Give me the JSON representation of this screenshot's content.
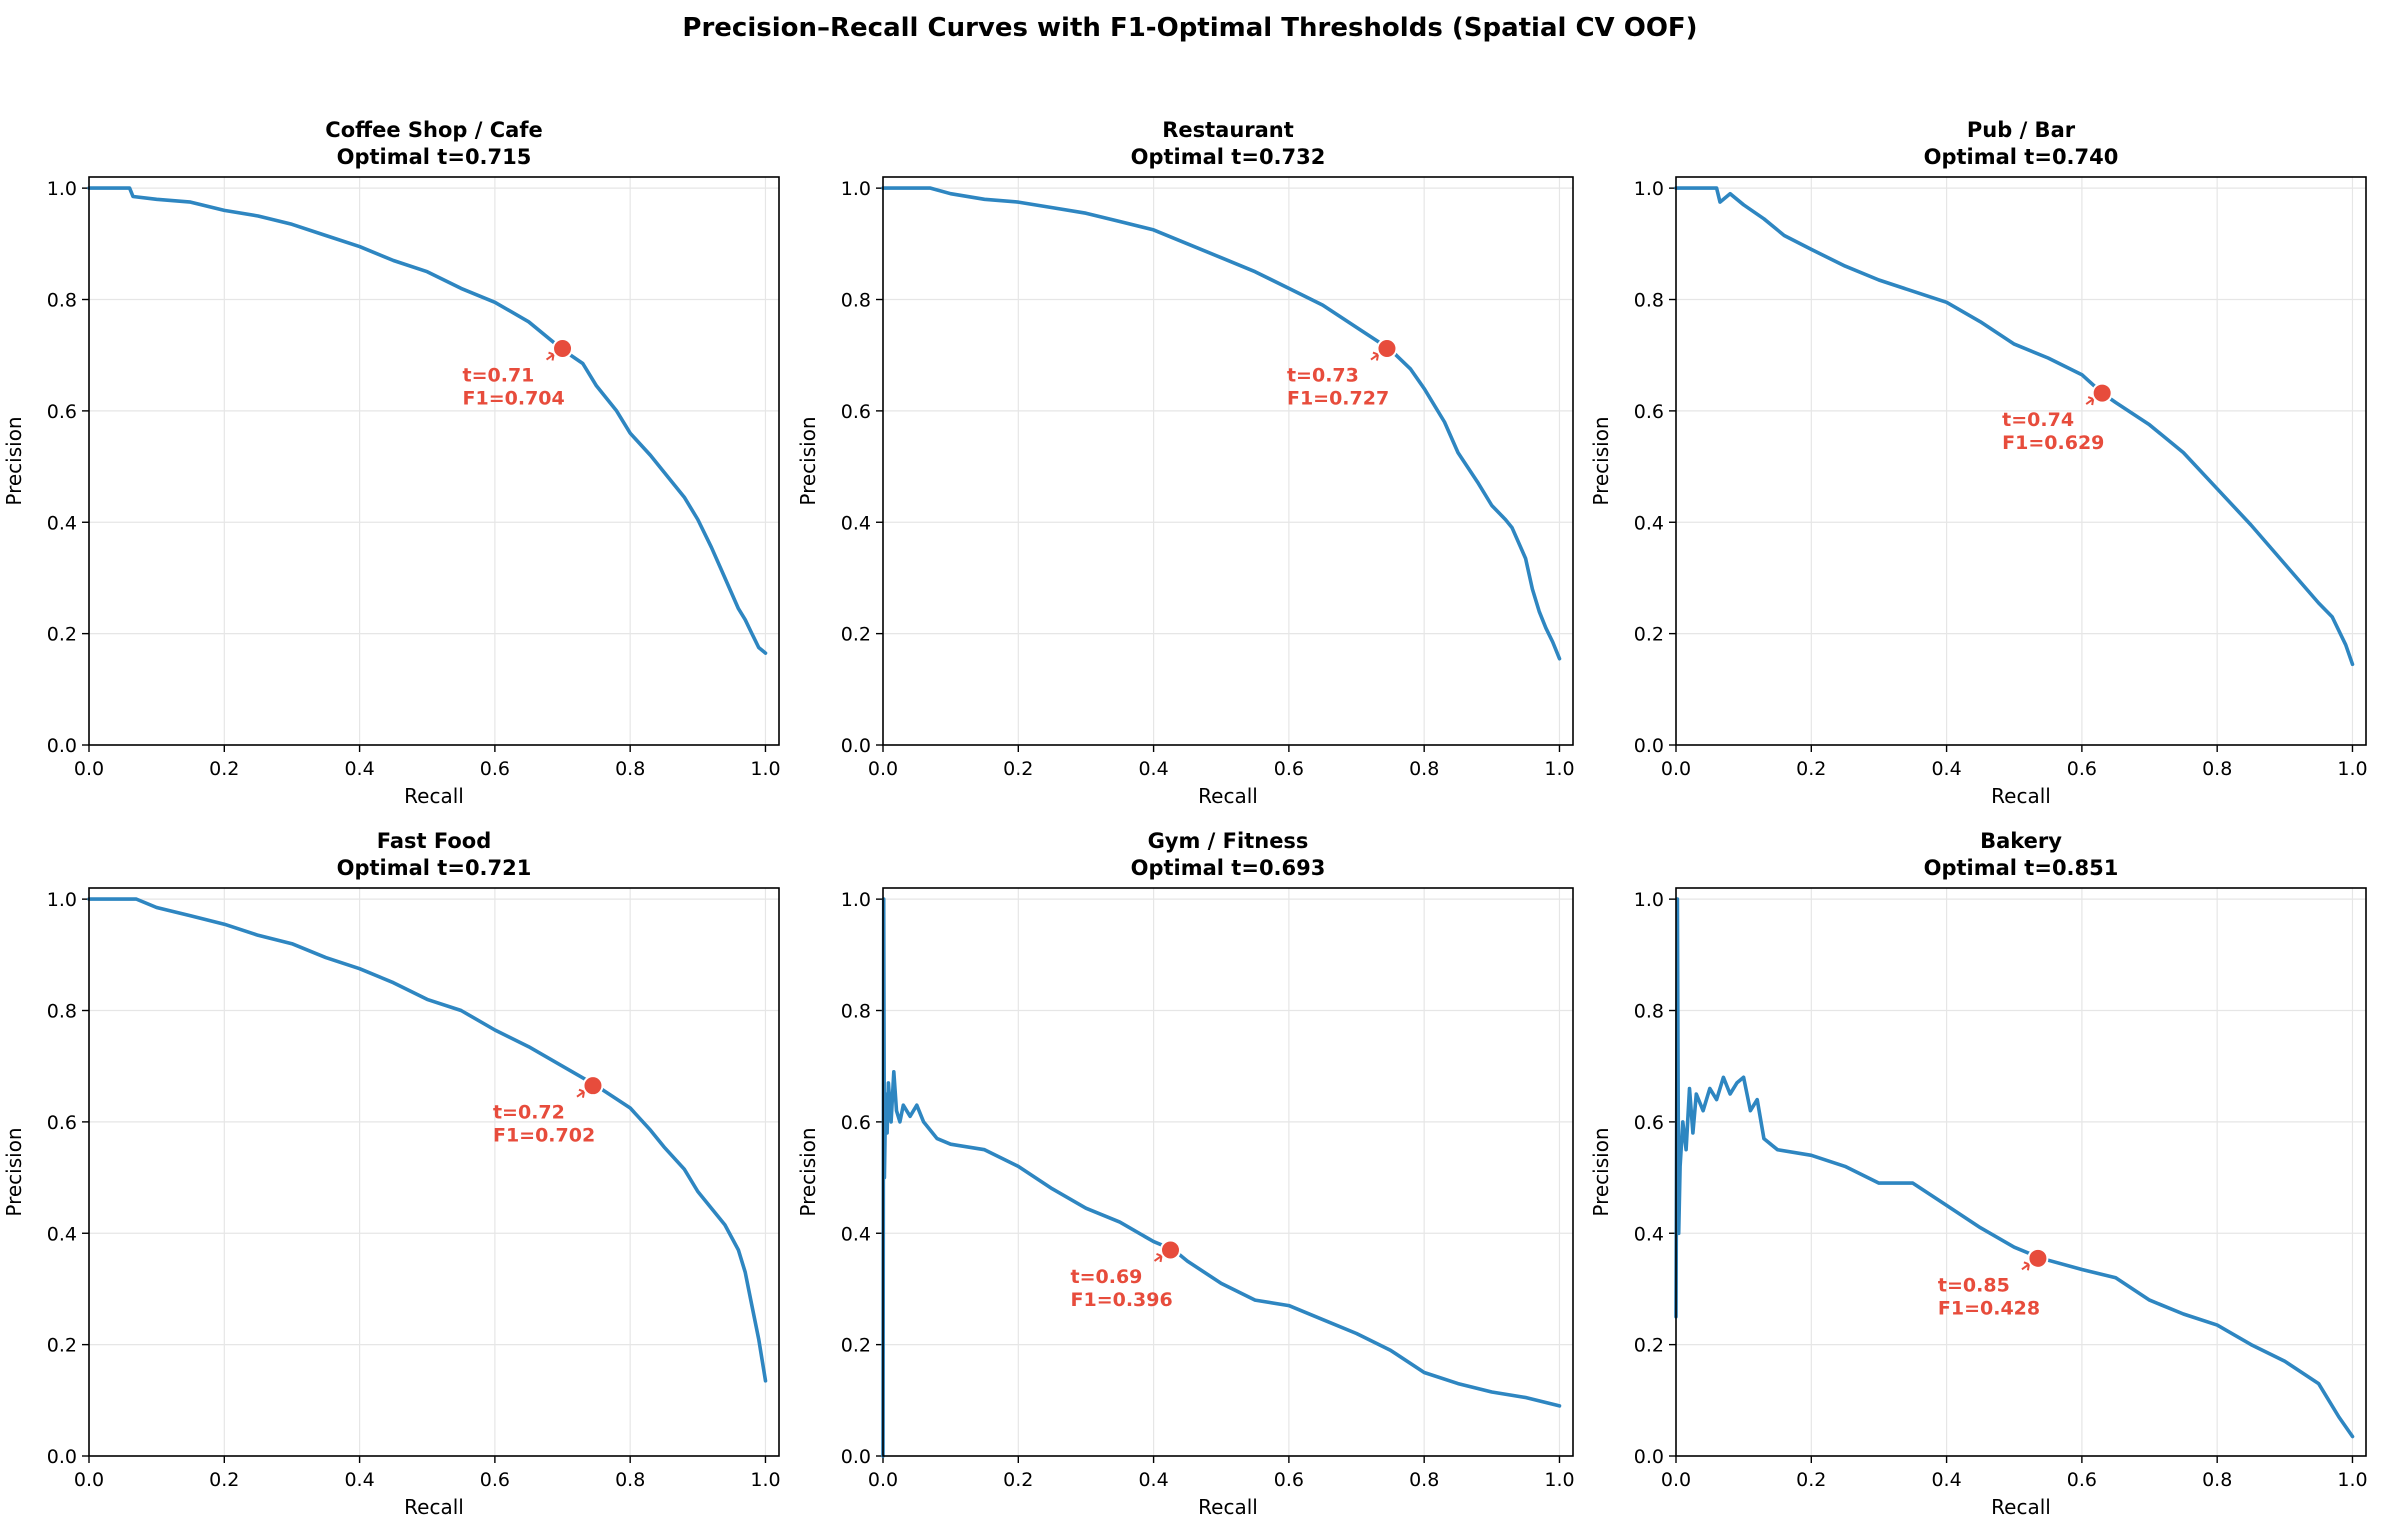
{
  "figure": {
    "title": "Precision–Recall Curves with F1-Optimal Thresholds (Spatial CV OOF)"
  },
  "colors": {
    "curve": "#2e86c1",
    "marker": "#e74c3c",
    "grid": "#e6e6e6",
    "axis": "#000000"
  },
  "chart_data": [
    {
      "type": "line",
      "title": "Coffee Shop / Cafe",
      "subtitle": "Optimal t=0.715",
      "xlabel": "Recall",
      "ylabel": "Precision",
      "xlim": [
        0,
        1.02
      ],
      "ylim": [
        0,
        1.02
      ],
      "xticks": [
        "0.0",
        "0.2",
        "0.4",
        "0.6",
        "0.8",
        "1.0"
      ],
      "yticks": [
        "0.0",
        "0.2",
        "0.4",
        "0.6",
        "0.8",
        "1.0"
      ],
      "grid": true,
      "curve": {
        "x": [
          0.0,
          0.06,
          0.065,
          0.1,
          0.15,
          0.2,
          0.25,
          0.3,
          0.35,
          0.4,
          0.45,
          0.5,
          0.55,
          0.6,
          0.65,
          0.7,
          0.73,
          0.75,
          0.78,
          0.8,
          0.83,
          0.85,
          0.88,
          0.9,
          0.92,
          0.94,
          0.96,
          0.97,
          0.98,
          0.99,
          1.0
        ],
        "y": [
          1.0,
          1.0,
          0.985,
          0.98,
          0.975,
          0.96,
          0.95,
          0.935,
          0.915,
          0.895,
          0.87,
          0.85,
          0.82,
          0.795,
          0.76,
          0.71,
          0.685,
          0.645,
          0.6,
          0.56,
          0.52,
          0.49,
          0.445,
          0.405,
          0.355,
          0.3,
          0.245,
          0.225,
          0.2,
          0.175,
          0.165
        ]
      },
      "optimal": {
        "recall": 0.7,
        "precision": 0.712,
        "label_t": "t=0.71",
        "label_f1": "F1=0.704"
      }
    },
    {
      "type": "line",
      "title": "Restaurant",
      "subtitle": "Optimal t=0.732",
      "xlabel": "Recall",
      "ylabel": "Precision",
      "xlim": [
        0,
        1.02
      ],
      "ylim": [
        0,
        1.02
      ],
      "xticks": [
        "0.0",
        "0.2",
        "0.4",
        "0.6",
        "0.8",
        "1.0"
      ],
      "yticks": [
        "0.0",
        "0.2",
        "0.4",
        "0.6",
        "0.8",
        "1.0"
      ],
      "grid": true,
      "curve": {
        "x": [
          0.0,
          0.07,
          0.1,
          0.15,
          0.2,
          0.25,
          0.3,
          0.35,
          0.4,
          0.45,
          0.5,
          0.55,
          0.6,
          0.65,
          0.7,
          0.75,
          0.78,
          0.8,
          0.83,
          0.85,
          0.88,
          0.9,
          0.92,
          0.93,
          0.95,
          0.96,
          0.97,
          0.98,
          0.99,
          1.0
        ],
        "y": [
          1.0,
          1.0,
          0.99,
          0.98,
          0.975,
          0.965,
          0.955,
          0.94,
          0.925,
          0.9,
          0.875,
          0.85,
          0.82,
          0.79,
          0.75,
          0.71,
          0.675,
          0.64,
          0.58,
          0.525,
          0.47,
          0.43,
          0.405,
          0.39,
          0.335,
          0.28,
          0.24,
          0.21,
          0.185,
          0.155
        ]
      },
      "optimal": {
        "recall": 0.745,
        "precision": 0.712,
        "label_t": "t=0.73",
        "label_f1": "F1=0.727"
      }
    },
    {
      "type": "line",
      "title": "Pub / Bar",
      "subtitle": "Optimal t=0.740",
      "xlabel": "Recall",
      "ylabel": "Precision",
      "xlim": [
        0,
        1.02
      ],
      "ylim": [
        0,
        1.02
      ],
      "xticks": [
        "0.0",
        "0.2",
        "0.4",
        "0.6",
        "0.8",
        "1.0"
      ],
      "yticks": [
        "0.0",
        "0.2",
        "0.4",
        "0.6",
        "0.8",
        "1.0"
      ],
      "grid": true,
      "curve": {
        "x": [
          0.0,
          0.06,
          0.065,
          0.08,
          0.1,
          0.13,
          0.16,
          0.2,
          0.25,
          0.3,
          0.35,
          0.4,
          0.45,
          0.5,
          0.55,
          0.6,
          0.63,
          0.65,
          0.7,
          0.75,
          0.8,
          0.85,
          0.9,
          0.95,
          0.97,
          0.99,
          1.0
        ],
        "y": [
          1.0,
          1.0,
          0.975,
          0.99,
          0.97,
          0.945,
          0.915,
          0.89,
          0.86,
          0.835,
          0.815,
          0.795,
          0.76,
          0.72,
          0.695,
          0.665,
          0.632,
          0.615,
          0.575,
          0.525,
          0.46,
          0.395,
          0.325,
          0.255,
          0.23,
          0.18,
          0.145
        ]
      },
      "optimal": {
        "recall": 0.63,
        "precision": 0.632,
        "label_t": "t=0.74",
        "label_f1": "F1=0.629"
      }
    },
    {
      "type": "line",
      "title": "Fast Food",
      "subtitle": "Optimal t=0.721",
      "xlabel": "Recall",
      "ylabel": "Precision",
      "xlim": [
        0,
        1.02
      ],
      "ylim": [
        0,
        1.02
      ],
      "xticks": [
        "0.0",
        "0.2",
        "0.4",
        "0.6",
        "0.8",
        "1.0"
      ],
      "yticks": [
        "0.0",
        "0.2",
        "0.4",
        "0.6",
        "0.8",
        "1.0"
      ],
      "grid": true,
      "curve": {
        "x": [
          0.0,
          0.07,
          0.1,
          0.15,
          0.2,
          0.25,
          0.3,
          0.35,
          0.4,
          0.45,
          0.5,
          0.55,
          0.6,
          0.65,
          0.7,
          0.75,
          0.8,
          0.83,
          0.85,
          0.88,
          0.9,
          0.92,
          0.94,
          0.96,
          0.97,
          0.98,
          0.99,
          1.0
        ],
        "y": [
          1.0,
          1.0,
          0.985,
          0.97,
          0.955,
          0.935,
          0.92,
          0.895,
          0.875,
          0.85,
          0.82,
          0.8,
          0.765,
          0.735,
          0.7,
          0.665,
          0.625,
          0.585,
          0.555,
          0.515,
          0.475,
          0.445,
          0.415,
          0.37,
          0.33,
          0.27,
          0.21,
          0.135
        ]
      },
      "optimal": {
        "recall": 0.745,
        "precision": 0.665,
        "label_t": "t=0.72",
        "label_f1": "F1=0.702"
      }
    },
    {
      "type": "line",
      "title": "Gym / Fitness",
      "subtitle": "Optimal t=0.693",
      "xlabel": "Recall",
      "ylabel": "Precision",
      "xlim": [
        0,
        1.02
      ],
      "ylim": [
        0,
        1.02
      ],
      "xticks": [
        "0.0",
        "0.2",
        "0.4",
        "0.6",
        "0.8",
        "1.0"
      ],
      "yticks": [
        "0.0",
        "0.2",
        "0.4",
        "0.6",
        "0.8",
        "1.0"
      ],
      "grid": true,
      "curve": {
        "x": [
          0.0,
          0.001,
          0.002,
          0.004,
          0.006,
          0.008,
          0.012,
          0.016,
          0.02,
          0.025,
          0.03,
          0.04,
          0.05,
          0.06,
          0.08,
          0.1,
          0.15,
          0.2,
          0.25,
          0.3,
          0.35,
          0.4,
          0.43,
          0.45,
          0.5,
          0.55,
          0.6,
          0.65,
          0.7,
          0.75,
          0.8,
          0.85,
          0.9,
          0.95,
          1.0
        ],
        "y": [
          0.0,
          1.0,
          0.5,
          0.65,
          0.58,
          0.67,
          0.6,
          0.69,
          0.62,
          0.6,
          0.63,
          0.61,
          0.63,
          0.6,
          0.57,
          0.56,
          0.55,
          0.52,
          0.48,
          0.445,
          0.42,
          0.385,
          0.37,
          0.35,
          0.31,
          0.28,
          0.27,
          0.245,
          0.22,
          0.19,
          0.15,
          0.13,
          0.115,
          0.105,
          0.09
        ]
      },
      "optimal": {
        "recall": 0.425,
        "precision": 0.37,
        "label_t": "t=0.69",
        "label_f1": "F1=0.396"
      }
    },
    {
      "type": "line",
      "title": "Bakery",
      "subtitle": "Optimal t=0.851",
      "xlabel": "Recall",
      "ylabel": "Precision",
      "xlim": [
        0,
        1.02
      ],
      "ylim": [
        0,
        1.02
      ],
      "xticks": [
        "0.0",
        "0.2",
        "0.4",
        "0.6",
        "0.8",
        "1.0"
      ],
      "yticks": [
        "0.0",
        "0.2",
        "0.4",
        "0.6",
        "0.8",
        "1.0"
      ],
      "grid": true,
      "curve": {
        "x": [
          0.0,
          0.002,
          0.004,
          0.006,
          0.01,
          0.015,
          0.02,
          0.025,
          0.03,
          0.04,
          0.05,
          0.06,
          0.07,
          0.08,
          0.09,
          0.1,
          0.11,
          0.12,
          0.13,
          0.14,
          0.15,
          0.2,
          0.25,
          0.3,
          0.35,
          0.4,
          0.45,
          0.5,
          0.54,
          0.6,
          0.65,
          0.7,
          0.75,
          0.8,
          0.85,
          0.9,
          0.95,
          0.98,
          1.0
        ],
        "y": [
          0.25,
          1.0,
          0.4,
          0.52,
          0.6,
          0.55,
          0.66,
          0.58,
          0.65,
          0.62,
          0.66,
          0.64,
          0.68,
          0.65,
          0.67,
          0.68,
          0.62,
          0.64,
          0.57,
          0.56,
          0.55,
          0.54,
          0.52,
          0.49,
          0.49,
          0.45,
          0.41,
          0.375,
          0.355,
          0.335,
          0.32,
          0.28,
          0.255,
          0.235,
          0.2,
          0.17,
          0.13,
          0.07,
          0.035
        ]
      },
      "optimal": {
        "recall": 0.535,
        "precision": 0.355,
        "label_t": "t=0.85",
        "label_f1": "F1=0.428"
      }
    }
  ]
}
